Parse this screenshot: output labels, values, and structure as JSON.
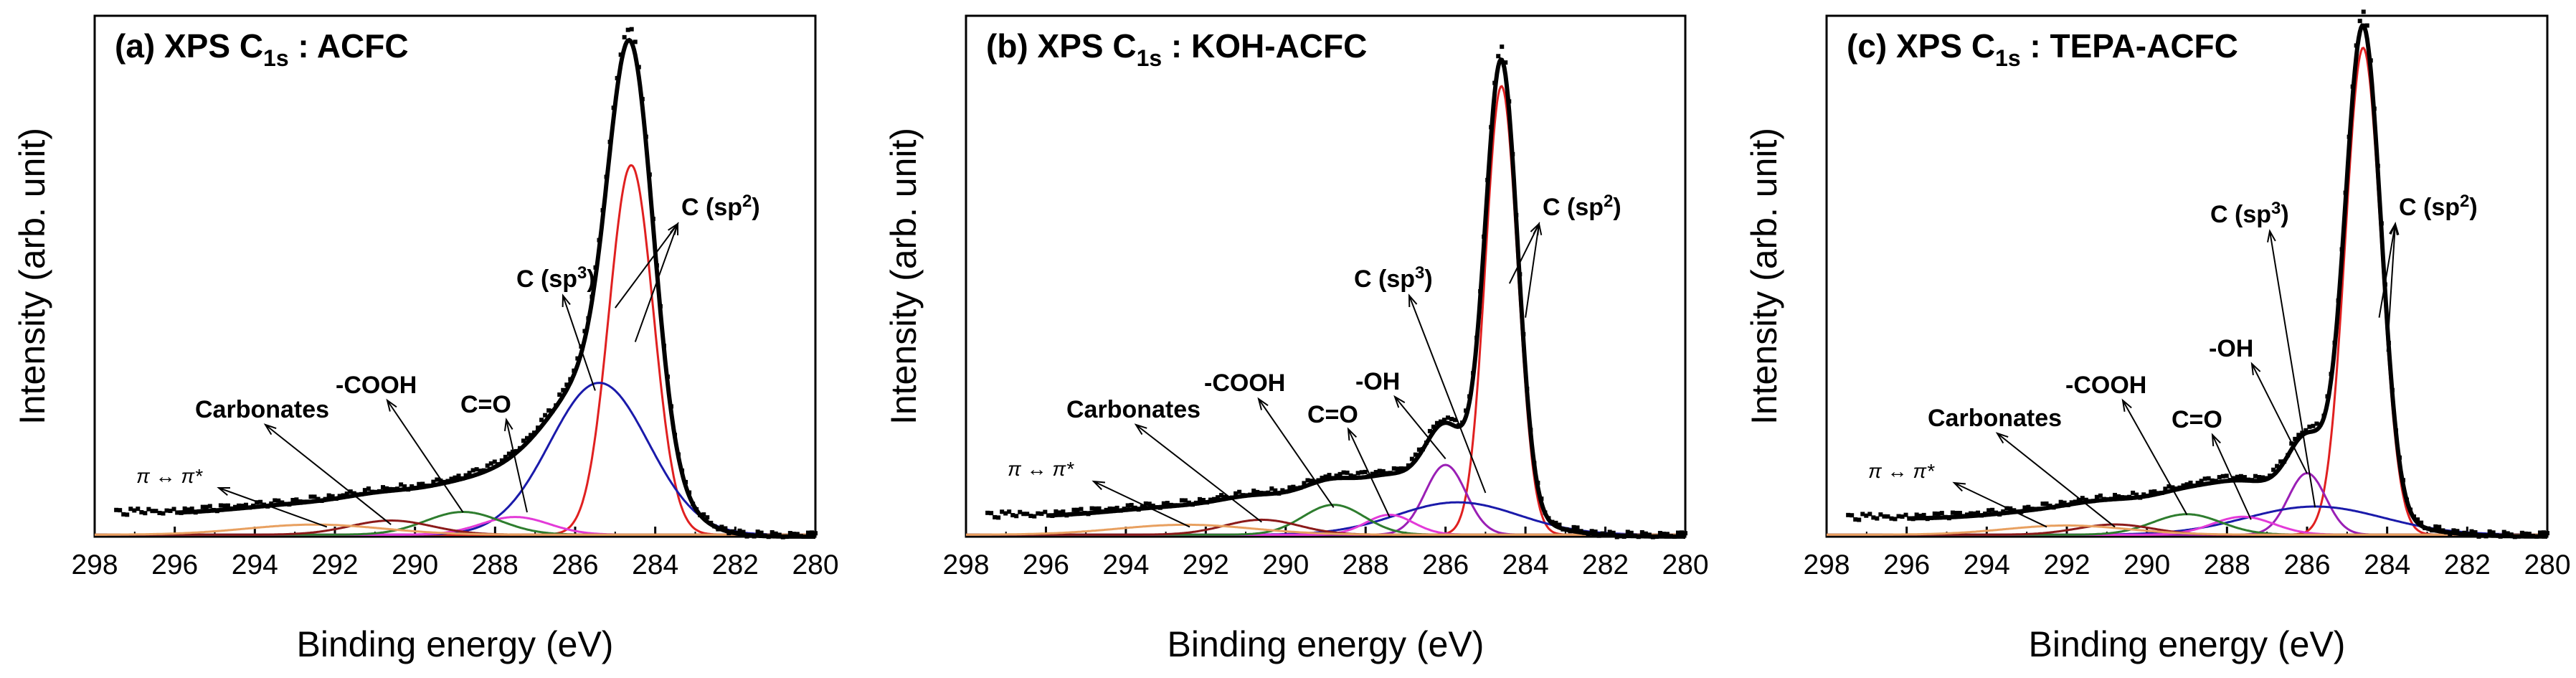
{
  "figure": {
    "shared": {
      "xlabel": "Binding energy (eV)",
      "ylabel": "Intensity (arb. unit)",
      "xlim": [
        298,
        280
      ],
      "x_ticks": [
        298,
        296,
        294,
        292,
        290,
        288,
        286,
        284,
        282,
        280
      ],
      "x_tick_labels": [
        "298",
        "296",
        "294",
        "292",
        "290",
        "288",
        "286",
        "284",
        "282",
        "280"
      ]
    },
    "colors": {
      "envelope": "#000000",
      "sp2": "#e02020",
      "sp3": "#1a1aaa",
      "oh": "#9a1fb5",
      "co": "#e33ad8",
      "cooh": "#2e7d2e",
      "carbonates": "#8b1a1a",
      "pi": "#e8a060",
      "background": "#f0a040"
    }
  },
  "chart_data": [
    {
      "type": "line",
      "title": "(a) XPS C1s : ACFC",
      "title_parts": [
        "(a) XPS C",
        "1s",
        " : ACFC"
      ],
      "xlabel": "Binding energy (eV)",
      "ylabel": "Intensity (arb. unit)",
      "xlim": [
        298,
        280
      ],
      "ylim": [
        0,
        1.07
      ],
      "components": [
        {
          "name": "C (sp2)",
          "key": "sp2",
          "center": 284.6,
          "fwhm": 1.3,
          "height": 0.73
        },
        {
          "name": "C (sp3)",
          "key": "sp3",
          "center": 285.4,
          "fwhm": 2.9,
          "height": 0.3
        },
        {
          "name": "C=O",
          "key": "co",
          "center": 287.5,
          "fwhm": 2.0,
          "height": 0.035
        },
        {
          "name": "-COOH",
          "key": "cooh",
          "center": 288.8,
          "fwhm": 2.2,
          "height": 0.045
        },
        {
          "name": "Carbonates",
          "key": "carbonates",
          "center": 290.6,
          "fwhm": 2.4,
          "height": 0.028
        },
        {
          "name": "π ↔ π*",
          "key": "pi",
          "center": 292.5,
          "fwhm": 4.0,
          "height": 0.02
        }
      ],
      "background_level": 0.045,
      "envelope_peak": 1.02,
      "labels": {
        "sp2_pre": "C (sp",
        "sp2_sup": "2",
        "sp2_post": ")",
        "sp3_pre": "C (sp",
        "sp3_sup": "3",
        "sp3_post": ")",
        "co": "C=O",
        "cooh": "-COOH",
        "carbonates": "Carbonates",
        "pi": "π ↔ π*"
      }
    },
    {
      "type": "line",
      "title": "(b) XPS C1s : KOH-ACFC",
      "title_parts": [
        "(b) XPS C",
        "1s",
        " : KOH-ACFC"
      ],
      "xlabel": "Binding energy (eV)",
      "ylabel": "Intensity (arb. unit)",
      "xlim": [
        298,
        280
      ],
      "ylim": [
        0,
        1.07
      ],
      "components": [
        {
          "name": "C (sp2)",
          "key": "sp2",
          "center": 284.6,
          "fwhm": 0.95,
          "height": 0.9
        },
        {
          "name": "-OH",
          "key": "oh",
          "center": 286.0,
          "fwhm": 1.2,
          "height": 0.14
        },
        {
          "name": "C (sp3)",
          "key": "sp3",
          "center": 285.7,
          "fwhm": 3.6,
          "height": 0.065
        },
        {
          "name": "C=O",
          "key": "co",
          "center": 287.4,
          "fwhm": 1.4,
          "height": 0.04
        },
        {
          "name": "-COOH",
          "key": "cooh",
          "center": 288.8,
          "fwhm": 1.8,
          "height": 0.06
        },
        {
          "name": "Carbonates",
          "key": "carbonates",
          "center": 290.6,
          "fwhm": 2.2,
          "height": 0.03
        },
        {
          "name": "π ↔ π*",
          "key": "pi",
          "center": 292.5,
          "fwhm": 4.0,
          "height": 0.02
        }
      ],
      "background_level": 0.04,
      "envelope_peak": 0.98,
      "labels": {
        "sp2_pre": "C (sp",
        "sp2_sup": "2",
        "sp2_post": ")",
        "sp3_pre": "C (sp",
        "sp3_sup": "3",
        "sp3_post": ")",
        "oh": "-OH",
        "co": "C=O",
        "cooh": "-COOH",
        "carbonates": "Carbonates",
        "pi": "π ↔ π*"
      }
    },
    {
      "type": "line",
      "title": "(c) XPS C1s : TEPA-ACFC",
      "title_parts": [
        "(c) XPS C",
        "1s",
        " : TEPA-ACFC"
      ],
      "xlabel": "Binding energy (eV)",
      "ylabel": "Intensity (arb. unit)",
      "xlim": [
        298,
        280
      ],
      "ylim": [
        0,
        1.07
      ],
      "components": [
        {
          "name": "C (sp2)",
          "key": "sp2",
          "center": 284.6,
          "fwhm": 1.05,
          "height": 0.95
        },
        {
          "name": "-OH",
          "key": "oh",
          "center": 286.0,
          "fwhm": 1.1,
          "height": 0.12
        },
        {
          "name": "C (sp3)",
          "key": "sp3",
          "center": 285.8,
          "fwhm": 4.0,
          "height": 0.055
        },
        {
          "name": "C=O",
          "key": "co",
          "center": 287.6,
          "fwhm": 1.8,
          "height": 0.035
        },
        {
          "name": "-COOH",
          "key": "cooh",
          "center": 289.0,
          "fwhm": 2.0,
          "height": 0.04
        },
        {
          "name": "Carbonates",
          "key": "carbonates",
          "center": 290.8,
          "fwhm": 2.2,
          "height": 0.02
        },
        {
          "name": "π ↔ π*",
          "key": "pi",
          "center": 292.0,
          "fwhm": 3.6,
          "height": 0.018
        }
      ],
      "background_level": 0.035,
      "envelope_peak": 1.05,
      "labels": {
        "sp2_pre": "C (sp",
        "sp2_sup": "2",
        "sp2_post": ")",
        "sp3_pre": "C (sp",
        "sp3_sup": "3",
        "sp3_post": ")",
        "oh": "-OH",
        "co": "C=O",
        "cooh": "-COOH",
        "carbonates": "Carbonates",
        "pi": "π ↔ π*"
      }
    }
  ]
}
